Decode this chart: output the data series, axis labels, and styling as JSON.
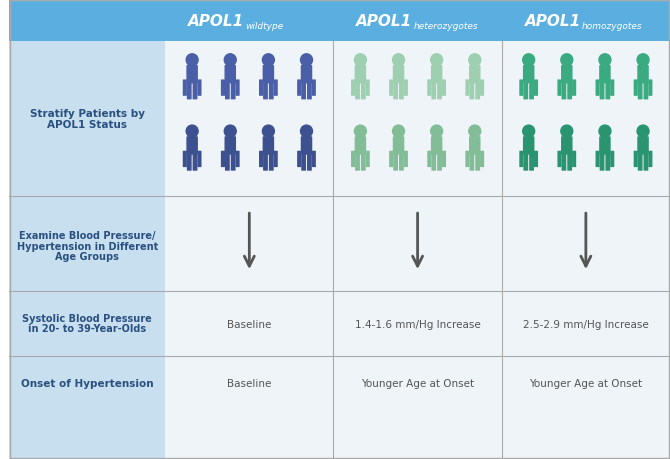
{
  "bg_color": "#ffffff",
  "header_color": "#5aafe0",
  "left_panel_color": "#c8dff0",
  "grid_line_color": "#aaaaaa",
  "title_text_color": "#ffffff",
  "body_text_color": "#555555",
  "left_label_color": "#2a5080",
  "col_headers": [
    {
      "main": "APOL1",
      "sub": "wildtype"
    },
    {
      "main": "APOL1",
      "sub": "heterozygotes"
    },
    {
      "main": "APOL1",
      "sub": "homozygotes"
    }
  ],
  "figure_colors": {
    "wildtype_top": "#4a5a9a",
    "wildtype_bottom": "#3a4880",
    "hetero_top_light": "#a8d8b8",
    "hetero_top_dark": "#7bbf9a",
    "hetero_bottom_light": "#b8e0c8",
    "hetero_bottom_dark": "#90cca8",
    "homo_top_dark": "#3aaa80",
    "homo_top_medium": "#5abf95",
    "homo_bottom_dark": "#2a9870",
    "homo_bottom_medium": "#4ab088"
  },
  "row_labels": [
    "Stratify Patients by\nAPOL1 Status",
    "Examine Blood Pressure/\nHypertension in Different\nAge Groups",
    "Systolic Blood Pressure\nin 20- to 39-Year-Olds",
    "Onset of Hypertension"
  ],
  "cell_data": [
    [
      "",
      "",
      ""
    ],
    [
      "",
      "",
      ""
    ],
    [
      "Baseline",
      "1.4-1.6 mm/Hg Increase",
      "2.5-2.9 mm/Hg Increase"
    ],
    [
      "Baseline",
      "Younger Age at Onset",
      "Younger Age at Onset"
    ]
  ]
}
